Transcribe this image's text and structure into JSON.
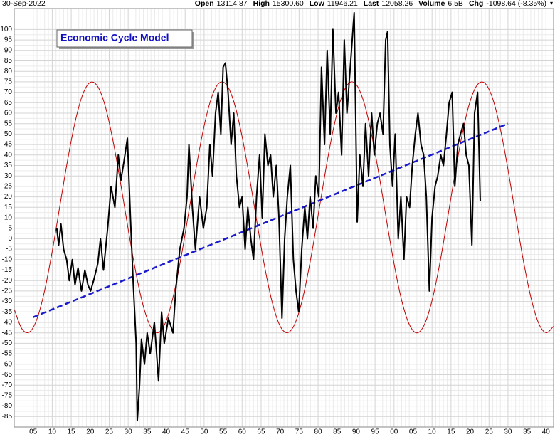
{
  "header": {
    "date": "30-Sep-2022",
    "stats": [
      {
        "label": "Open",
        "value": "13114.87"
      },
      {
        "label": "High",
        "value": "15300.60"
      },
      {
        "label": "Low",
        "value": "11946.21"
      },
      {
        "label": "Last",
        "value": "12058.26"
      },
      {
        "label": "Volume",
        "value": "6.5B"
      },
      {
        "label": "Chg",
        "value": "-1098.64 (-8.35%)"
      }
    ]
  },
  "chart_data": {
    "type": "line",
    "title": "Economic Cycle Model",
    "xlim": [
      1900,
      2042
    ],
    "ylim": [
      -90,
      110
    ],
    "grid": true,
    "xticks": [
      {
        "value": 1905,
        "label": "05"
      },
      {
        "value": 1910,
        "label": "10"
      },
      {
        "value": 1915,
        "label": "15"
      },
      {
        "value": 1920,
        "label": "20"
      },
      {
        "value": 1925,
        "label": "25"
      },
      {
        "value": 1930,
        "label": "30"
      },
      {
        "value": 1935,
        "label": "35"
      },
      {
        "value": 1940,
        "label": "40"
      },
      {
        "value": 1945,
        "label": "45"
      },
      {
        "value": 1950,
        "label": "50"
      },
      {
        "value": 1955,
        "label": "55"
      },
      {
        "value": 1960,
        "label": "60"
      },
      {
        "value": 1965,
        "label": "65"
      },
      {
        "value": 1970,
        "label": "70"
      },
      {
        "value": 1975,
        "label": "75"
      },
      {
        "value": 1980,
        "label": "80"
      },
      {
        "value": 1985,
        "label": "85"
      },
      {
        "value": 1990,
        "label": "90"
      },
      {
        "value": 1995,
        "label": "95"
      },
      {
        "value": 2000,
        "label": "00"
      },
      {
        "value": 2005,
        "label": "05"
      },
      {
        "value": 2010,
        "label": "10"
      },
      {
        "value": 2015,
        "label": "15"
      },
      {
        "value": 2020,
        "label": "20"
      },
      {
        "value": 2025,
        "label": "25"
      },
      {
        "value": 2030,
        "label": "30"
      },
      {
        "value": 2035,
        "label": "35"
      },
      {
        "value": 2040,
        "label": "40"
      }
    ],
    "yticks": [
      -85,
      -80,
      -75,
      -70,
      -65,
      -60,
      -55,
      -50,
      -45,
      -40,
      -35,
      -30,
      -25,
      -20,
      -15,
      -10,
      -5,
      0,
      5,
      10,
      15,
      20,
      25,
      30,
      35,
      40,
      45,
      50,
      55,
      60,
      65,
      70,
      75,
      80,
      85,
      90,
      95,
      100
    ],
    "series": [
      {
        "color": "#c00000",
        "width": 1,
        "smooth": true,
        "x": [
          1900,
          1902,
          1904,
          1906,
          1908,
          1910,
          1912,
          1914,
          1916,
          1918,
          1920,
          1922,
          1924,
          1926,
          1928,
          1930,
          1932,
          1934,
          1936,
          1938,
          1940,
          1942,
          1944,
          1946,
          1948,
          1950,
          1952,
          1954,
          1956,
          1958,
          1960,
          1962,
          1964,
          1966,
          1968,
          1970,
          1972,
          1974,
          1976,
          1978,
          1980,
          1982,
          1984,
          1986,
          1988,
          1990,
          1992,
          1994,
          1996,
          1998,
          2000,
          2002,
          2004,
          2006,
          2008,
          2010,
          2012,
          2014,
          2016,
          2018,
          2020,
          2022,
          2024,
          2026,
          2028,
          2030,
          2032,
          2034,
          2036,
          2038,
          2040,
          2042
        ],
        "values": [
          -33.7,
          -43.0,
          -44.6,
          -38.3,
          -24.8,
          -6.1,
          15.5,
          37.0,
          55.6,
          68.8,
          74.7,
          72.7,
          63.1,
          46.9,
          26.6,
          4.6,
          -15.9,
          -32.3,
          -42.4,
          -44.8,
          -39.3,
          -26.5,
          -8.2,
          13.3,
          34.9,
          53.9,
          67.7,
          74.5,
          73.3,
          64.4,
          48.8,
          28.8,
          6.9,
          -14.0,
          -30.9,
          -41.7,
          -44.9,
          -40.2,
          -28.1,
          -10.2,
          11.0,
          32.8,
          52.2,
          66.6,
          74.2,
          73.8,
          65.6,
          50.6,
          31.0,
          9.1,
          -11.9,
          -29.4,
          -40.9,
          -45.0,
          -41.0,
          -29.6,
          -12.2,
          8.8,
          30.6,
          50.4,
          65.5,
          73.7,
          74.2,
          66.8,
          52.4,
          33.1,
          11.3,
          -10.0,
          -27.8,
          -40.1,
          -44.9,
          -41.8
        ]
      },
      {
        "color": "#1a1acc",
        "width": 2.5,
        "dashed": true,
        "x": [
          1905,
          2030
        ],
        "values": [
          -37.5,
          55
        ]
      },
      {
        "color": "#000000",
        "width": 2,
        "x": [
          1911.2,
          1911.7,
          1912.3,
          1913.0,
          1913.8,
          1914.5,
          1915.3,
          1916.0,
          1916.8,
          1917.7,
          1918.6,
          1919.4,
          1920.1,
          1920.9,
          1922.0,
          1922.7,
          1923.5,
          1924.6,
          1925.5,
          1926.5,
          1927.4,
          1928.1,
          1928.9,
          1929.8,
          1930.6,
          1931.3,
          1932.1,
          1932.4,
          1933.0,
          1933.5,
          1934.3,
          1935.0,
          1935.8,
          1936.9,
          1938.0,
          1938.8,
          1939.5,
          1940.6,
          1941.8,
          1942.5,
          1943.6,
          1944.7,
          1945.5,
          1946.0,
          1946.9,
          1947.7,
          1948.8,
          1949.8,
          1950.7,
          1951.5,
          1952.2,
          1953.0,
          1953.7,
          1954.4,
          1955.0,
          1955.6,
          1956.3,
          1957.1,
          1957.8,
          1958.5,
          1959.3,
          1960.0,
          1960.8,
          1961.5,
          1962.3,
          1963.0,
          1963.8,
          1964.6,
          1965.3,
          1966.0,
          1966.8,
          1967.5,
          1968.2,
          1969.0,
          1969.7,
          1970.5,
          1971.2,
          1971.9,
          1972.7,
          1973.5,
          1974.2,
          1974.9,
          1975.7,
          1976.5,
          1977.2,
          1977.9,
          1978.7,
          1979.4,
          1980.2,
          1980.9,
          1981.7,
          1982.4,
          1983.2,
          1983.9,
          1984.7,
          1985.4,
          1986.2,
          1986.9,
          1987.6,
          1988.4,
          1989.5,
          1990.3,
          1991.0,
          1991.8,
          1992.5,
          1993.3,
          1994.1,
          1994.8,
          1995.6,
          1996.3,
          1997.1,
          1997.8,
          1998.3,
          1998.9,
          1999.6,
          2000.3,
          2001.1,
          2001.8,
          2002.6,
          2003.3,
          2004.1,
          2004.8,
          2005.6,
          2006.3,
          2007.1,
          2007.8,
          2008.5,
          2009.3,
          2010.0,
          2010.8,
          2011.5,
          2012.3,
          2013.0,
          2013.8,
          2014.5,
          2015.3,
          2016.0,
          2016.8,
          2017.5,
          2018.3,
          2019.0,
          2019.7,
          2020.5,
          2021.2,
          2022.0,
          2022.7
        ],
        "values": [
          5,
          -3,
          7,
          -5,
          -10,
          -20,
          -10,
          -22,
          -14,
          -25,
          -15,
          -22,
          -25,
          -20,
          -12,
          0,
          -15,
          5,
          25,
          15,
          40,
          28,
          37,
          48,
          10,
          -20,
          -50,
          -87,
          -70,
          -48,
          -60,
          -45,
          -55,
          -40,
          -68,
          -35,
          -50,
          -38,
          -45,
          -25,
          -5,
          5,
          20,
          45,
          15,
          -5,
          20,
          5,
          15,
          45,
          30,
          60,
          70,
          50,
          82,
          84,
          70,
          45,
          60,
          30,
          15,
          20,
          -5,
          15,
          0,
          -10,
          20,
          40,
          10,
          50,
          35,
          40,
          20,
          35,
          10,
          -38,
          0,
          20,
          35,
          -10,
          -25,
          -35,
          -5,
          15,
          0,
          20,
          5,
          30,
          20,
          82,
          45,
          90,
          50,
          100,
          60,
          70,
          40,
          95,
          60,
          80,
          108,
          8,
          40,
          25,
          55,
          30,
          60,
          40,
          55,
          60,
          50,
          95,
          99,
          45,
          25,
          50,
          0,
          20,
          -10,
          20,
          15,
          35,
          50,
          60,
          45,
          40,
          20,
          -25,
          10,
          25,
          30,
          40,
          35,
          50,
          65,
          70,
          25,
          45,
          50,
          55,
          40,
          35,
          -3,
          60,
          70,
          18
        ]
      }
    ]
  }
}
